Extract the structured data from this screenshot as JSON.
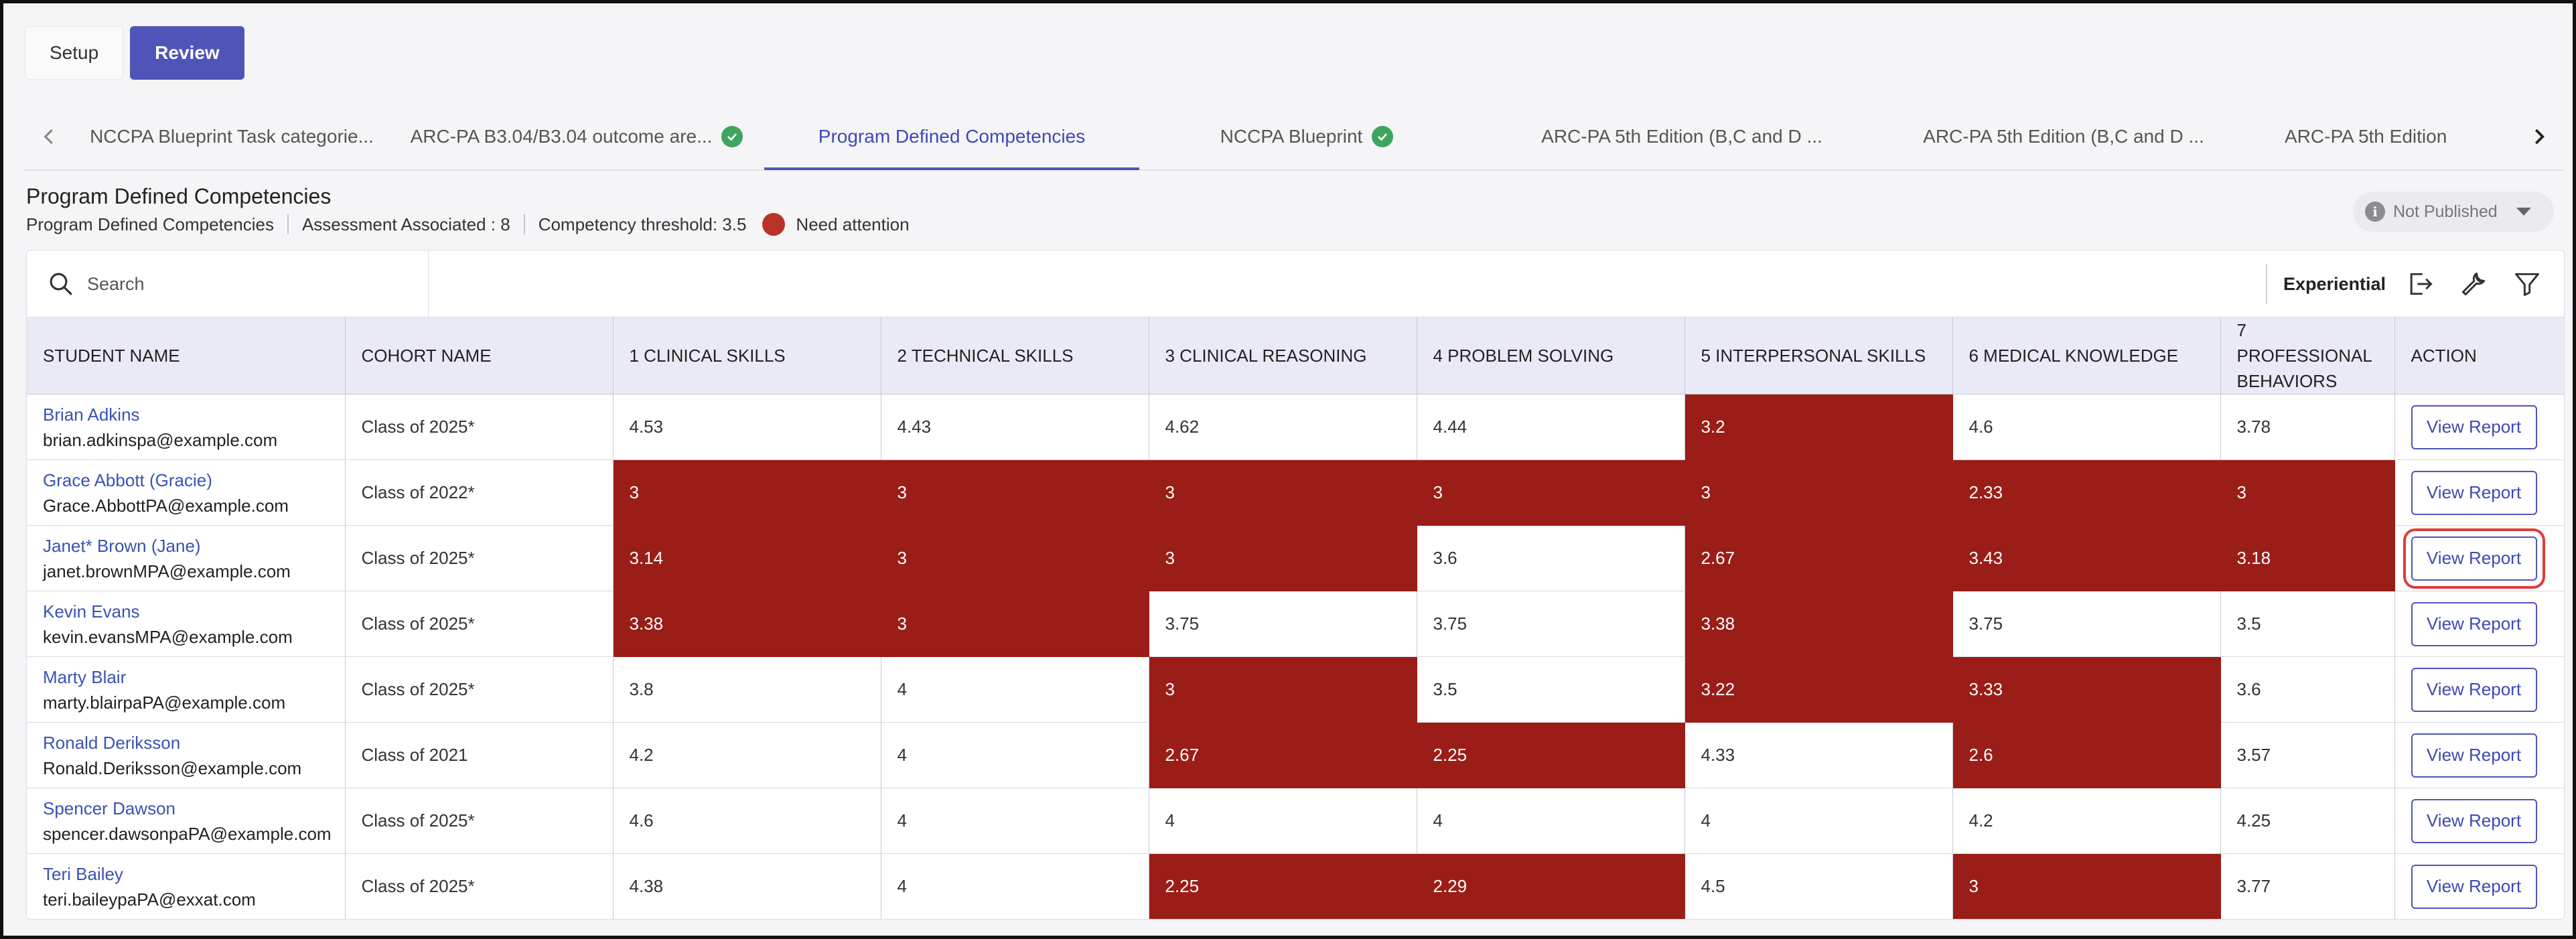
{
  "topbar": {
    "setup": "Setup",
    "review": "Review"
  },
  "tabs": [
    {
      "label": "NCCPA Blueprint Task categorie...",
      "check": false
    },
    {
      "label": "ARC-PA B3.04/B3.04 outcome are...",
      "check": true
    },
    {
      "label": "Program Defined Competencies",
      "check": false,
      "active": true
    },
    {
      "label": "NCCPA Blueprint",
      "check": true
    },
    {
      "label": "ARC-PA 5th Edition (B,C and D ...",
      "check": false
    },
    {
      "label": "ARC-PA 5th Edition (B,C and D ...",
      "check": false
    },
    {
      "label": "ARC-PA 5th Edition",
      "check": false
    }
  ],
  "header": {
    "title": "Program Defined Competencies",
    "subtitle": "Program Defined Competencies",
    "assessment": "Assessment Associated : 8",
    "threshold": "Competency threshold: 3.5",
    "attention": "Need attention",
    "attention_color": "#b83226"
  },
  "publish": {
    "label": "Not Published"
  },
  "toolbar": {
    "search_placeholder": "Search",
    "experiential": "Experiential"
  },
  "colors": {
    "flag": "#9b1d17",
    "accent": "#4f55b8",
    "link": "#3a52b4"
  },
  "table": {
    "headers": [
      "STUDENT NAME",
      "COHORT NAME",
      "1 CLINICAL SKILLS",
      "2 TECHNICAL SKILLS",
      "3 CLINICAL REASONING",
      "4 PROBLEM SOLVING",
      "5 INTERPERSONAL SKILLS",
      "6 MEDICAL KNOWLEDGE",
      "7 PROFESSIONAL BEHAVIORS",
      "ACTION"
    ],
    "action_label": "View Report",
    "rows": [
      {
        "name": "Brian Adkins",
        "email": "brian.adkinspa@example.com",
        "cohort": "Class of 2025*",
        "scores": [
          "4.53",
          "4.43",
          "4.62",
          "4.44",
          "3.2",
          "4.6",
          "3.78"
        ],
        "flags": [
          false,
          false,
          false,
          false,
          true,
          false,
          false
        ]
      },
      {
        "name": "Grace Abbott (Gracie)",
        "email": "Grace.AbbottPA@example.com",
        "cohort": "Class of 2022*",
        "scores": [
          "3",
          "3",
          "3",
          "3",
          "3",
          "2.33",
          "3"
        ],
        "flags": [
          true,
          true,
          true,
          true,
          true,
          true,
          true
        ]
      },
      {
        "name": "Janet* Brown (Jane)",
        "email": "janet.brownMPA@example.com",
        "cohort": "Class of 2025*",
        "scores": [
          "3.14",
          "3",
          "3",
          "3.6",
          "2.67",
          "3.43",
          "3.18"
        ],
        "flags": [
          true,
          true,
          true,
          false,
          true,
          true,
          true
        ],
        "highlight": true
      },
      {
        "name": "Kevin Evans",
        "email": "kevin.evansMPA@example.com",
        "cohort": "Class of 2025*",
        "scores": [
          "3.38",
          "3",
          "3.75",
          "3.75",
          "3.38",
          "3.75",
          "3.5"
        ],
        "flags": [
          true,
          true,
          false,
          false,
          true,
          false,
          false
        ]
      },
      {
        "name": "Marty Blair",
        "email": "marty.blairpaPA@example.com",
        "cohort": "Class of 2025*",
        "scores": [
          "3.8",
          "4",
          "3",
          "3.5",
          "3.22",
          "3.33",
          "3.6"
        ],
        "flags": [
          false,
          false,
          true,
          false,
          true,
          true,
          false
        ]
      },
      {
        "name": "Ronald Deriksson",
        "email": "Ronald.Deriksson@example.com",
        "cohort": "Class of 2021",
        "scores": [
          "4.2",
          "4",
          "2.67",
          "2.25",
          "4.33",
          "2.6",
          "3.57"
        ],
        "flags": [
          false,
          false,
          true,
          true,
          false,
          true,
          false
        ]
      },
      {
        "name": "Spencer Dawson",
        "email": "spencer.dawsonpaPA@example.com",
        "cohort": "Class of 2025*",
        "scores": [
          "4.6",
          "4",
          "4",
          "4",
          "4",
          "4.2",
          "4.25"
        ],
        "flags": [
          false,
          false,
          false,
          false,
          false,
          false,
          false
        ]
      },
      {
        "name": "Teri Bailey",
        "email": "teri.baileypaPA@exxat.com",
        "cohort": "Class of 2025*",
        "scores": [
          "4.38",
          "4",
          "2.25",
          "2.29",
          "4.5",
          "3",
          "3.77"
        ],
        "flags": [
          false,
          false,
          true,
          true,
          false,
          true,
          false
        ]
      }
    ]
  }
}
